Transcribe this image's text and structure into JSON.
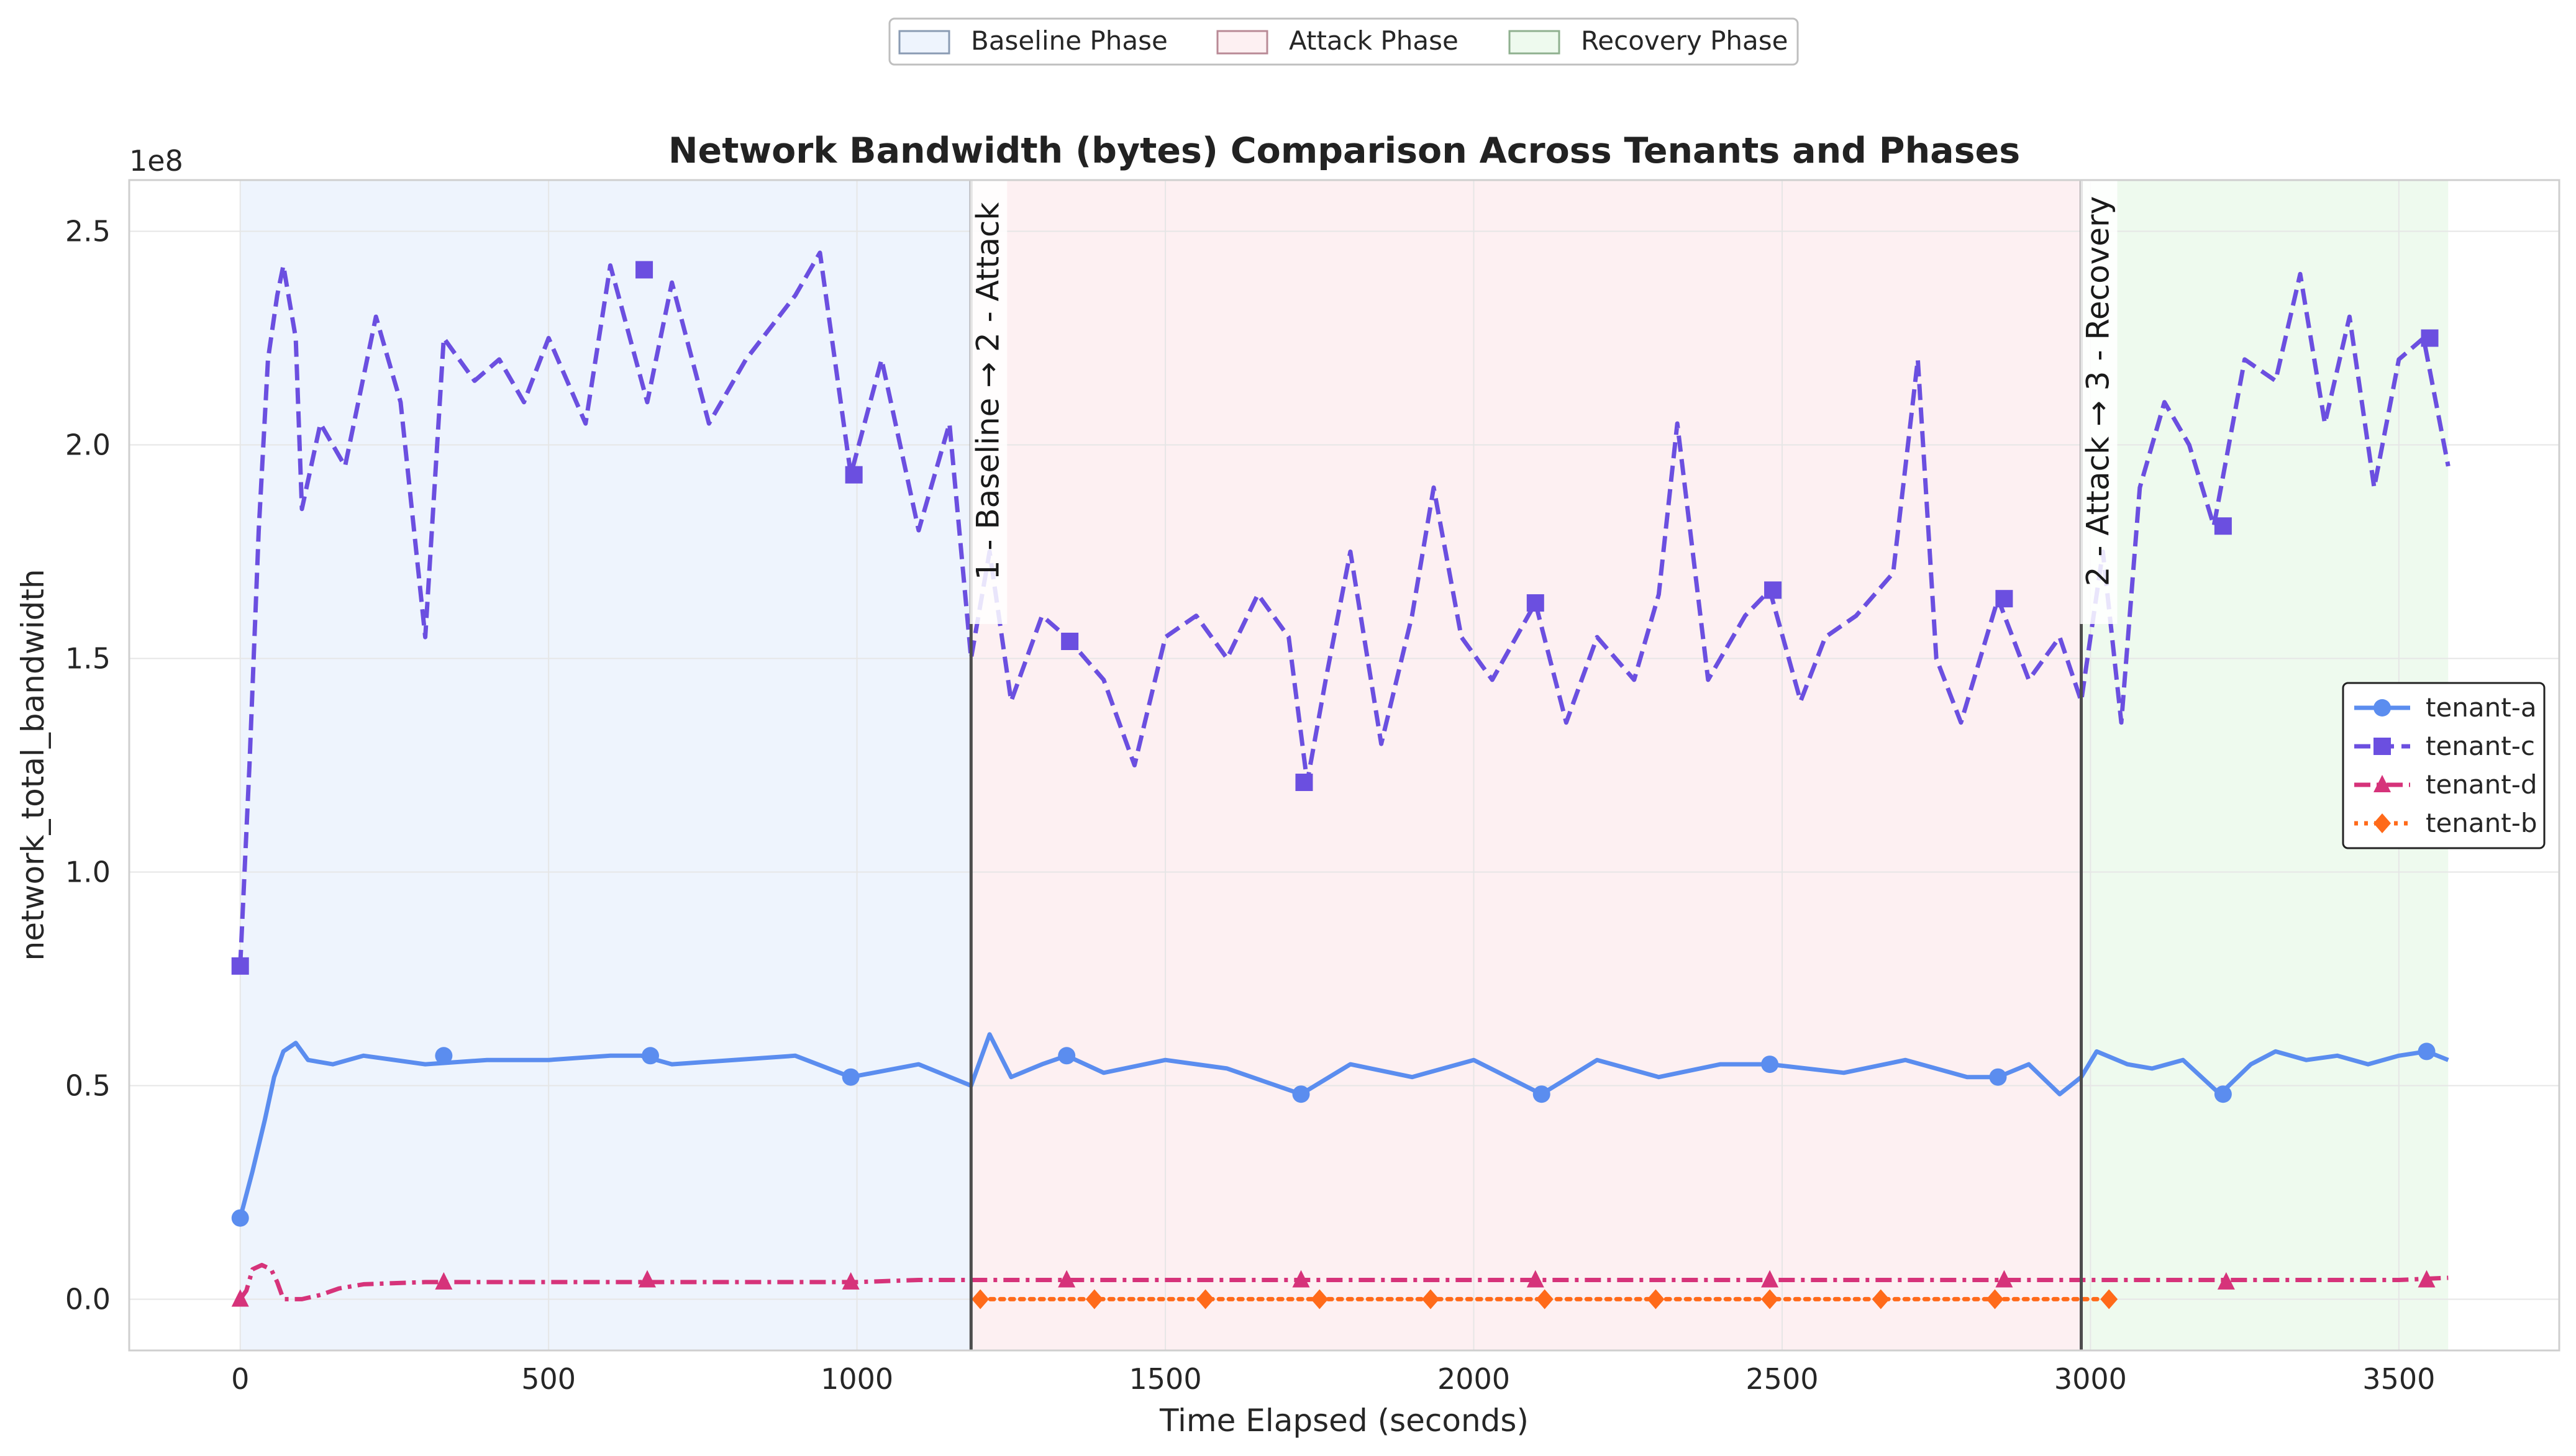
{
  "chart_data": {
    "type": "line",
    "title": "Network Bandwidth (bytes) Comparison Across Tenants and Phases",
    "xlabel": "Time Elapsed (seconds)",
    "ylabel": "network_total_bandwidth",
    "y_offset_label": "1e8",
    "xlim": [
      -180,
      3760
    ],
    "ylim": [
      -0.12,
      2.62
    ],
    "x_ticks": [
      0,
      500,
      1000,
      1500,
      2000,
      2500,
      3000,
      3500
    ],
    "x_tick_labels": [
      "0",
      "500",
      "1000",
      "1500",
      "2000",
      "2500",
      "3000",
      "3500"
    ],
    "y_ticks": [
      0.0,
      0.5,
      1.0,
      1.5,
      2.0,
      2.5
    ],
    "y_tick_labels": [
      "0.0",
      "0.5",
      "1.0",
      "1.5",
      "2.0",
      "2.5"
    ],
    "grid": true,
    "phases": [
      {
        "name": "Baseline Phase",
        "start": 0,
        "end": 1185,
        "fill": "#eef4fd",
        "edge": "#8a9bb3"
      },
      {
        "name": "Attack Phase",
        "start": 1185,
        "end": 2985,
        "fill": "#fdf0f2",
        "edge": "#b98a96"
      },
      {
        "name": "Recovery Phase",
        "start": 2985,
        "end": 3580,
        "fill": "#eefaee",
        "edge": "#8fb08f"
      }
    ],
    "transitions": [
      {
        "x": 1185,
        "label": "1 - Baseline → 2 - Attack"
      },
      {
        "x": 2985,
        "label": "2 - Attack → 3 - Recovery"
      }
    ],
    "phase_legend_position": "top-center",
    "series_legend_position": "center-right",
    "series": [
      {
        "name": "tenant-a",
        "color": "#5b8def",
        "dash": "solid",
        "marker": "circle",
        "x": [
          0,
          20,
          40,
          55,
          70,
          90,
          110,
          150,
          200,
          300,
          400,
          500,
          600,
          650,
          700,
          800,
          900,
          990,
          1100,
          1185,
          1215,
          1250,
          1300,
          1340,
          1400,
          1500,
          1600,
          1720,
          1800,
          1900,
          2000,
          2110,
          2200,
          2300,
          2400,
          2480,
          2600,
          2700,
          2800,
          2850,
          2900,
          2950,
          2985,
          3010,
          3060,
          3100,
          3150,
          3210,
          3260,
          3300,
          3350,
          3400,
          3450,
          3500,
          3545,
          3580
        ],
        "y": [
          0.19,
          0.3,
          0.42,
          0.52,
          0.58,
          0.6,
          0.56,
          0.55,
          0.57,
          0.55,
          0.56,
          0.56,
          0.57,
          0.57,
          0.55,
          0.56,
          0.57,
          0.52,
          0.55,
          0.5,
          0.62,
          0.52,
          0.55,
          0.57,
          0.53,
          0.56,
          0.54,
          0.48,
          0.55,
          0.52,
          0.56,
          0.48,
          0.56,
          0.52,
          0.55,
          0.55,
          0.53,
          0.56,
          0.52,
          0.52,
          0.55,
          0.48,
          0.52,
          0.58,
          0.55,
          0.54,
          0.56,
          0.48,
          0.55,
          0.58,
          0.56,
          0.57,
          0.55,
          0.57,
          0.58,
          0.56
        ],
        "marker_x": [
          0,
          330,
          665,
          990,
          1340,
          1720,
          2110,
          2480,
          2850,
          3215,
          3545
        ],
        "marker_y": [
          0.19,
          0.57,
          0.57,
          0.52,
          0.57,
          0.48,
          0.48,
          0.55,
          0.52,
          0.48,
          0.58
        ]
      },
      {
        "name": "tenant-c",
        "color": "#6b4fe0",
        "dash": "dashed",
        "marker": "square",
        "x": [
          0,
          15,
          30,
          45,
          60,
          70,
          90,
          100,
          130,
          170,
          220,
          260,
          300,
          330,
          380,
          420,
          460,
          500,
          560,
          600,
          660,
          700,
          760,
          820,
          900,
          940,
          990,
          1040,
          1100,
          1150,
          1185,
          1215,
          1250,
          1300,
          1340,
          1400,
          1450,
          1500,
          1550,
          1600,
          1650,
          1700,
          1730,
          1760,
          1800,
          1850,
          1900,
          1935,
          1980,
          2030,
          2100,
          2150,
          2200,
          2260,
          2300,
          2330,
          2380,
          2440,
          2480,
          2530,
          2570,
          2620,
          2680,
          2720,
          2750,
          2790,
          2850,
          2900,
          2950,
          2985,
          3020,
          3050,
          3080,
          3120,
          3160,
          3200,
          3250,
          3300,
          3340,
          3380,
          3420,
          3460,
          3500,
          3540,
          3580
        ],
        "y": [
          0.78,
          1.25,
          1.8,
          2.2,
          2.35,
          2.42,
          2.25,
          1.85,
          2.05,
          1.95,
          2.3,
          2.1,
          1.55,
          2.25,
          2.15,
          2.2,
          2.1,
          2.25,
          2.05,
          2.42,
          2.1,
          2.38,
          2.05,
          2.2,
          2.35,
          2.45,
          1.93,
          2.2,
          1.8,
          2.05,
          1.5,
          1.75,
          1.4,
          1.6,
          1.55,
          1.45,
          1.25,
          1.55,
          1.6,
          1.5,
          1.65,
          1.55,
          1.21,
          1.45,
          1.75,
          1.3,
          1.6,
          1.9,
          1.55,
          1.45,
          1.63,
          1.35,
          1.55,
          1.45,
          1.65,
          2.05,
          1.45,
          1.6,
          1.66,
          1.4,
          1.55,
          1.6,
          1.7,
          2.2,
          1.5,
          1.35,
          1.64,
          1.45,
          1.55,
          1.4,
          1.75,
          1.35,
          1.9,
          2.1,
          2.0,
          1.81,
          2.2,
          2.15,
          2.4,
          2.05,
          2.3,
          1.9,
          2.2,
          2.25,
          1.95
        ],
        "marker_x": [
          0,
          655,
          995,
          1345,
          1725,
          2100,
          2485,
          2860,
          3215,
          3550
        ],
        "marker_y": [
          0.78,
          2.41,
          1.93,
          1.54,
          1.21,
          1.63,
          1.66,
          1.64,
          1.81,
          2.25
        ]
      },
      {
        "name": "tenant-d",
        "color": "#d6337a",
        "dash": "dashdot",
        "marker": "triangle",
        "x": [
          0,
          10,
          20,
          35,
          50,
          60,
          70,
          80,
          100,
          130,
          160,
          200,
          300,
          400,
          500,
          600,
          700,
          800,
          900,
          1000,
          1100,
          1185,
          1300,
          1400,
          1500,
          1600,
          1700,
          1800,
          1900,
          2000,
          2100,
          2200,
          2300,
          2400,
          2500,
          2600,
          2700,
          2800,
          2900,
          2985,
          3100,
          3200,
          3300,
          3400,
          3500,
          3580
        ],
        "y": [
          0.0,
          0.02,
          0.07,
          0.08,
          0.07,
          0.04,
          0.0,
          0.0,
          0.0,
          0.01,
          0.025,
          0.035,
          0.04,
          0.04,
          0.04,
          0.04,
          0.04,
          0.04,
          0.04,
          0.04,
          0.045,
          0.045,
          0.045,
          0.045,
          0.045,
          0.045,
          0.045,
          0.045,
          0.045,
          0.045,
          0.045,
          0.045,
          0.045,
          0.045,
          0.045,
          0.045,
          0.045,
          0.045,
          0.045,
          0.045,
          0.045,
          0.045,
          0.045,
          0.045,
          0.045,
          0.05
        ],
        "marker_x": [
          0,
          330,
          660,
          990,
          1340,
          1720,
          2100,
          2480,
          2860,
          3220,
          3545
        ],
        "marker_y": [
          0.0,
          0.04,
          0.045,
          0.04,
          0.045,
          0.045,
          0.045,
          0.045,
          0.045,
          0.04,
          0.045
        ]
      },
      {
        "name": "tenant-b",
        "color": "#ff6a1a",
        "dash": "dotted",
        "marker": "diamond",
        "x": [
          1200,
          3030
        ],
        "y": [
          0.0,
          0.0
        ],
        "marker_x": [
          1200,
          1385,
          1565,
          1750,
          1930,
          2115,
          2295,
          2480,
          2660,
          2845,
          3030
        ],
        "marker_y": [
          0.0,
          0.0,
          0.0,
          0.0,
          0.0,
          0.0,
          0.0,
          0.0,
          0.0,
          0.0,
          0.0
        ]
      }
    ]
  }
}
